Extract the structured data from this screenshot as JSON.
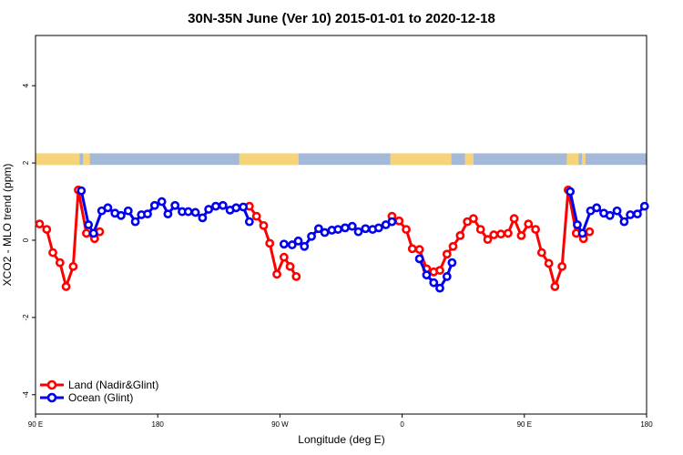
{
  "chart_data": {
    "type": "line",
    "title": "30N-35N June (Ver 10)   2015-01-01 to 2020-12-18",
    "xlabel": "Longitude (deg E)",
    "ylabel": "XCO2 - MLO trend (ppm)",
    "xlim": [
      0,
      360
    ],
    "ylim": [
      -4.5,
      5.3
    ],
    "x_ticks": [
      {
        "value": 0,
        "label": "90 E"
      },
      {
        "value": 72,
        "label": "180"
      },
      {
        "value": 144,
        "label": "90 W"
      },
      {
        "value": 216,
        "label": "0"
      },
      {
        "value": 288,
        "label": "90 E"
      },
      {
        "value": 360,
        "label": "180"
      }
    ],
    "y_ticks": [
      {
        "value": -4,
        "label": "-4"
      },
      {
        "value": -2,
        "label": "-2"
      },
      {
        "value": 0,
        "label": "0"
      },
      {
        "value": 2,
        "label": "2"
      },
      {
        "value": 4,
        "label": "4"
      }
    ],
    "land_band": {
      "y_range": [
        1.95,
        2.25
      ],
      "land_color": "#f6d57a",
      "ocean_color": "#a4b8d8",
      "land_x_ranges": [
        [
          0,
          26
        ],
        [
          28,
          32
        ],
        [
          120,
          155
        ],
        [
          209,
          245
        ],
        [
          253,
          258
        ],
        [
          313,
          320
        ],
        [
          322,
          324
        ]
      ]
    },
    "legend_position": "bottom-left",
    "series": [
      {
        "name": "Land (Nadir&Glint)",
        "color": "#ff0000",
        "segments": [
          [
            [
              2.4,
              0.42
            ],
            [
              6.6,
              0.28
            ],
            [
              10.2,
              -0.32
            ],
            [
              14.4,
              -0.58
            ],
            [
              18,
              -1.2
            ],
            [
              22.2,
              -0.68
            ],
            [
              25.2,
              1.3
            ],
            [
              30,
              0.18
            ],
            [
              34.8,
              0.04
            ],
            [
              37.8,
              0.22
            ]
          ],
          [
            [
              126,
              0.88
            ],
            [
              130.2,
              0.62
            ],
            [
              134.4,
              0.38
            ],
            [
              138,
              -0.08
            ],
            [
              142.2,
              -0.88
            ],
            [
              146.4,
              -0.44
            ],
            [
              150,
              -0.68
            ],
            [
              153.6,
              -0.94
            ]
          ],
          [
            [
              210,
              0.62
            ],
            [
              214.2,
              0.5
            ],
            [
              218.4,
              0.28
            ],
            [
              222,
              -0.22
            ],
            [
              226.2,
              -0.24
            ],
            [
              230.4,
              -0.74
            ],
            [
              234.6,
              -0.82
            ],
            [
              238.2,
              -0.78
            ],
            [
              242.4,
              -0.36
            ],
            [
              246,
              -0.16
            ],
            [
              250.2,
              0.12
            ],
            [
              254.4,
              0.48
            ],
            [
              258,
              0.56
            ],
            [
              262.2,
              0.28
            ],
            [
              266.4,
              0.02
            ],
            [
              270,
              0.14
            ],
            [
              274.2,
              0.16
            ],
            [
              278.4,
              0.18
            ],
            [
              282,
              0.56
            ],
            [
              286.2,
              0.12
            ],
            [
              290.4,
              0.42
            ],
            [
              294.6,
              0.28
            ],
            [
              298.2,
              -0.32
            ],
            [
              302.4,
              -0.6
            ],
            [
              306,
              -1.2
            ],
            [
              310.2,
              -0.68
            ],
            [
              313.8,
              1.3
            ],
            [
              318.6,
              0.18
            ],
            [
              322.8,
              0.04
            ],
            [
              326.4,
              0.22
            ]
          ]
        ]
      },
      {
        "name": "Ocean (Glint)",
        "color": "#0000ee",
        "segments": [
          [
            [
              27,
              1.28
            ],
            [
              31.2,
              0.4
            ],
            [
              34.2,
              0.18
            ],
            [
              39,
              0.76
            ],
            [
              42.6,
              0.84
            ],
            [
              46.8,
              0.7
            ],
            [
              50.4,
              0.64
            ],
            [
              54.6,
              0.76
            ],
            [
              58.8,
              0.48
            ],
            [
              62.4,
              0.66
            ],
            [
              66,
              0.68
            ],
            [
              70.2,
              0.9
            ],
            [
              74.4,
              1.0
            ],
            [
              78,
              0.68
            ],
            [
              82.2,
              0.9
            ],
            [
              86.4,
              0.74
            ],
            [
              90,
              0.74
            ],
            [
              94.2,
              0.72
            ],
            [
              98.4,
              0.58
            ],
            [
              102,
              0.8
            ],
            [
              106.2,
              0.88
            ],
            [
              110.4,
              0.9
            ],
            [
              114.6,
              0.78
            ],
            [
              118.2,
              0.84
            ],
            [
              122.4,
              0.86
            ],
            [
              126,
              0.48
            ]
          ],
          [
            [
              146.4,
              -0.1
            ],
            [
              151.2,
              -0.12
            ],
            [
              154.8,
              -0.02
            ],
            [
              158.4,
              -0.16
            ],
            [
              162.6,
              0.1
            ],
            [
              166.8,
              0.3
            ],
            [
              170.4,
              0.2
            ],
            [
              174.6,
              0.26
            ],
            [
              178.2,
              0.28
            ],
            [
              182.4,
              0.32
            ],
            [
              186.6,
              0.36
            ],
            [
              190.2,
              0.22
            ],
            [
              194.4,
              0.3
            ],
            [
              198.6,
              0.28
            ],
            [
              202.2,
              0.32
            ],
            [
              206.4,
              0.4
            ],
            [
              210,
              0.48
            ]
          ],
          [
            [
              226.2,
              -0.48
            ],
            [
              230.4,
              -0.9
            ],
            [
              234.6,
              -1.1
            ],
            [
              238.2,
              -1.24
            ],
            [
              242.4,
              -0.94
            ],
            [
              245.4,
              -0.58
            ]
          ],
          [
            [
              315,
              1.26
            ],
            [
              319.2,
              0.4
            ],
            [
              322.2,
              0.18
            ],
            [
              327,
              0.76
            ],
            [
              330.6,
              0.84
            ],
            [
              334.8,
              0.7
            ],
            [
              338.4,
              0.64
            ],
            [
              342.6,
              0.76
            ],
            [
              346.8,
              0.48
            ],
            [
              350.4,
              0.66
            ],
            [
              354.6,
              0.68
            ],
            [
              358.8,
              0.88
            ]
          ]
        ]
      }
    ]
  }
}
